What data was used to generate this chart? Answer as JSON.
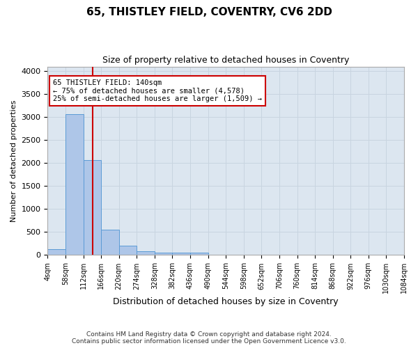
{
  "title": "65, THISTLEY FIELD, COVENTRY, CV6 2DD",
  "subtitle": "Size of property relative to detached houses in Coventry",
  "xlabel": "Distribution of detached houses by size in Coventry",
  "ylabel": "Number of detached properties",
  "footer_line1": "Contains HM Land Registry data © Crown copyright and database right 2024.",
  "footer_line2": "Contains public sector information licensed under the Open Government Licence v3.0.",
  "annotation_line1": "65 THISTLEY FIELD: 140sqm",
  "annotation_line2": "← 75% of detached houses are smaller (4,578)",
  "annotation_line3": "25% of semi-detached houses are larger (1,509) →",
  "property_size": 140,
  "bar_color": "#aec6e8",
  "bar_edge_color": "#5b9bd5",
  "vline_color": "#cc0000",
  "annotation_box_edge_color": "#cc0000",
  "background_color": "#ffffff",
  "grid_color": "#c8d4e0",
  "plot_bg_color": "#dce6f0",
  "bin_edges": [
    4,
    58,
    112,
    166,
    220,
    274,
    328,
    382,
    436,
    490,
    544,
    598,
    652,
    706,
    760,
    814,
    868,
    922,
    976,
    1030,
    1084
  ],
  "bar_heights": [
    130,
    3060,
    2060,
    555,
    200,
    85,
    55,
    45,
    45,
    0,
    0,
    0,
    0,
    0,
    0,
    0,
    0,
    0,
    0,
    0
  ],
  "ylim": [
    0,
    4100
  ],
  "yticks": [
    0,
    500,
    1000,
    1500,
    2000,
    2500,
    3000,
    3500,
    4000
  ]
}
